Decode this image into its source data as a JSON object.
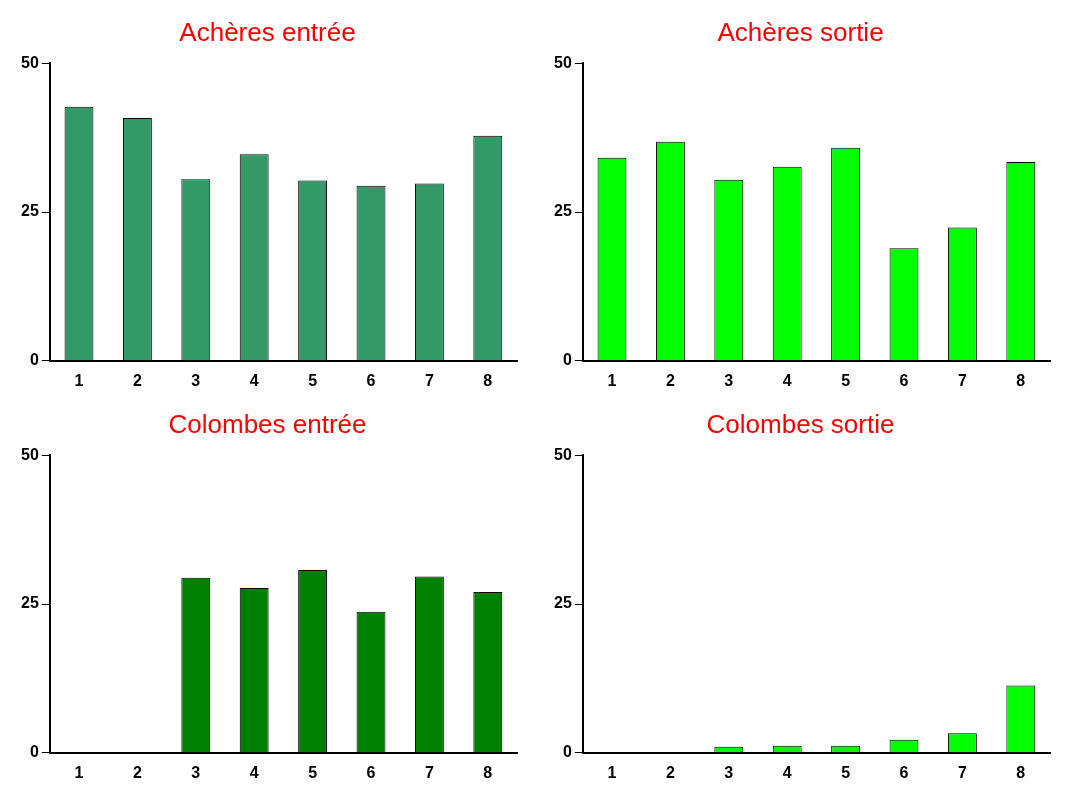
{
  "chart_data": [
    {
      "type": "bar",
      "title": "Achères entrée",
      "categories": [
        "1",
        "2",
        "3",
        "4",
        "5",
        "6",
        "7",
        "8"
      ],
      "values": [
        42.7,
        40.8,
        30.5,
        34.7,
        30.3,
        29.4,
        29.8,
        37.8
      ],
      "color": "#339966",
      "ylim": [
        0,
        50
      ],
      "yticks": [
        0,
        25,
        50
      ]
    },
    {
      "type": "bar",
      "title": "Achères sortie",
      "categories": [
        "1",
        "2",
        "3",
        "4",
        "5",
        "6",
        "7",
        "8"
      ],
      "values": [
        34.1,
        36.8,
        30.4,
        32.6,
        35.8,
        18.9,
        22.4,
        33.4
      ],
      "color": "#00ff00",
      "ylim": [
        0,
        50
      ],
      "yticks": [
        0,
        25,
        50
      ]
    },
    {
      "type": "bar",
      "title": "Colombes entrée",
      "categories": [
        "1",
        "2",
        "3",
        "4",
        "5",
        "6",
        "7",
        "8"
      ],
      "values": [
        0,
        0,
        29.4,
        27.7,
        30.7,
        23.7,
        29.6,
        27.0
      ],
      "color": "#008000",
      "ylim": [
        0,
        50
      ],
      "yticks": [
        0,
        25,
        50
      ]
    },
    {
      "type": "bar",
      "title": "Colombes sortie",
      "categories": [
        "1",
        "2",
        "3",
        "4",
        "5",
        "6",
        "7",
        "8"
      ],
      "values": [
        0,
        0,
        1.0,
        1.2,
        1.2,
        2.2,
        3.3,
        11.3
      ],
      "color": "#00ff00",
      "ylim": [
        0,
        50
      ],
      "yticks": [
        0,
        25,
        50
      ]
    }
  ]
}
